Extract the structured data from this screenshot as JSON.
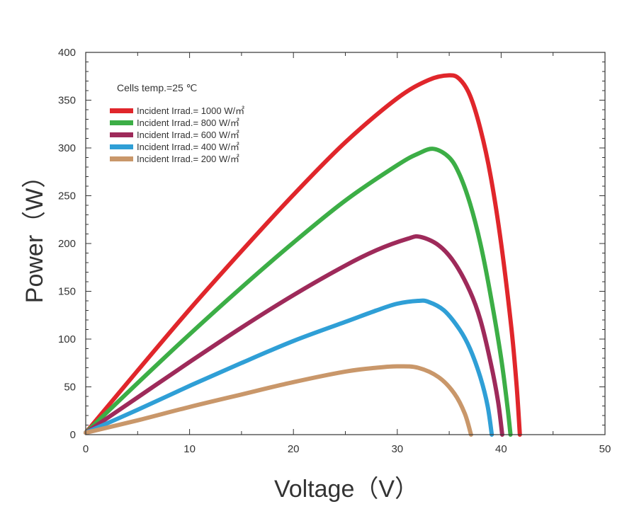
{
  "chart_data": {
    "type": "line",
    "xlabel": "Voltage（V）",
    "ylabel": "Power（W）",
    "xlim": [
      0,
      50
    ],
    "ylim": [
      0,
      400
    ],
    "xticks": [
      "0",
      "10",
      "20",
      "30",
      "40",
      "50"
    ],
    "yticks": [
      "0",
      "50",
      "100",
      "150",
      "200",
      "250",
      "300",
      "350",
      "400"
    ],
    "grid": false,
    "legend_position": "top-left",
    "annotation": "Cells temp.=25 ℃",
    "series": [
      {
        "name": "Incident Irrad.= 1000 W/㎡",
        "color": "#e0262b",
        "points": [
          [
            0,
            2
          ],
          [
            5,
            67
          ],
          [
            10,
            131
          ],
          [
            15,
            192
          ],
          [
            20,
            251
          ],
          [
            25,
            306
          ],
          [
            30,
            352
          ],
          [
            33,
            371
          ],
          [
            35,
            376
          ],
          [
            36,
            372
          ],
          [
            37,
            355
          ],
          [
            38,
            320
          ],
          [
            39,
            270
          ],
          [
            40,
            200
          ],
          [
            41,
            110
          ],
          [
            41.5,
            50
          ],
          [
            41.8,
            0
          ]
        ]
      },
      {
        "name": "Incident Irrad.= 800 W/㎡",
        "color": "#3cae46",
        "points": [
          [
            0,
            2
          ],
          [
            5,
            54
          ],
          [
            10,
            105
          ],
          [
            15,
            154
          ],
          [
            20,
            201
          ],
          [
            25,
            245
          ],
          [
            30,
            282
          ],
          [
            32,
            294
          ],
          [
            33.5,
            299
          ],
          [
            35,
            290
          ],
          [
            36,
            272
          ],
          [
            37,
            242
          ],
          [
            38,
            200
          ],
          [
            39,
            145
          ],
          [
            40,
            80
          ],
          [
            40.6,
            30
          ],
          [
            40.9,
            0
          ]
        ]
      },
      {
        "name": "Incident Irrad.= 600 W/㎡",
        "color": "#9e2a5a",
        "points": [
          [
            0,
            2
          ],
          [
            5,
            39
          ],
          [
            10,
            76
          ],
          [
            15,
            112
          ],
          [
            20,
            146
          ],
          [
            25,
            177
          ],
          [
            28,
            193
          ],
          [
            31,
            205
          ],
          [
            32.2,
            207
          ],
          [
            34,
            198
          ],
          [
            35.5,
            180
          ],
          [
            37,
            150
          ],
          [
            38,
            120
          ],
          [
            39,
            75
          ],
          [
            39.7,
            35
          ],
          [
            40.1,
            0
          ]
        ]
      },
      {
        "name": "Incident Irrad.= 400 W/㎡",
        "color": "#2f9fd6",
        "points": [
          [
            0,
            2
          ],
          [
            5,
            26
          ],
          [
            10,
            51
          ],
          [
            15,
            75
          ],
          [
            20,
            98
          ],
          [
            25,
            118
          ],
          [
            28,
            130
          ],
          [
            30,
            137
          ],
          [
            32,
            140
          ],
          [
            33,
            139
          ],
          [
            34.5,
            130
          ],
          [
            36,
            110
          ],
          [
            37,
            90
          ],
          [
            38,
            60
          ],
          [
            38.7,
            30
          ],
          [
            39.1,
            0
          ]
        ]
      },
      {
        "name": "Incident Irrad.= 200 W/㎡",
        "color": "#c9976a",
        "points": [
          [
            0,
            2
          ],
          [
            5,
            15
          ],
          [
            10,
            29
          ],
          [
            15,
            42
          ],
          [
            20,
            55
          ],
          [
            25,
            66
          ],
          [
            28,
            70
          ],
          [
            30,
            71.5
          ],
          [
            32,
            70
          ],
          [
            34,
            60
          ],
          [
            35.5,
            43
          ],
          [
            36.5,
            22
          ],
          [
            37.1,
            0
          ]
        ]
      }
    ]
  }
}
